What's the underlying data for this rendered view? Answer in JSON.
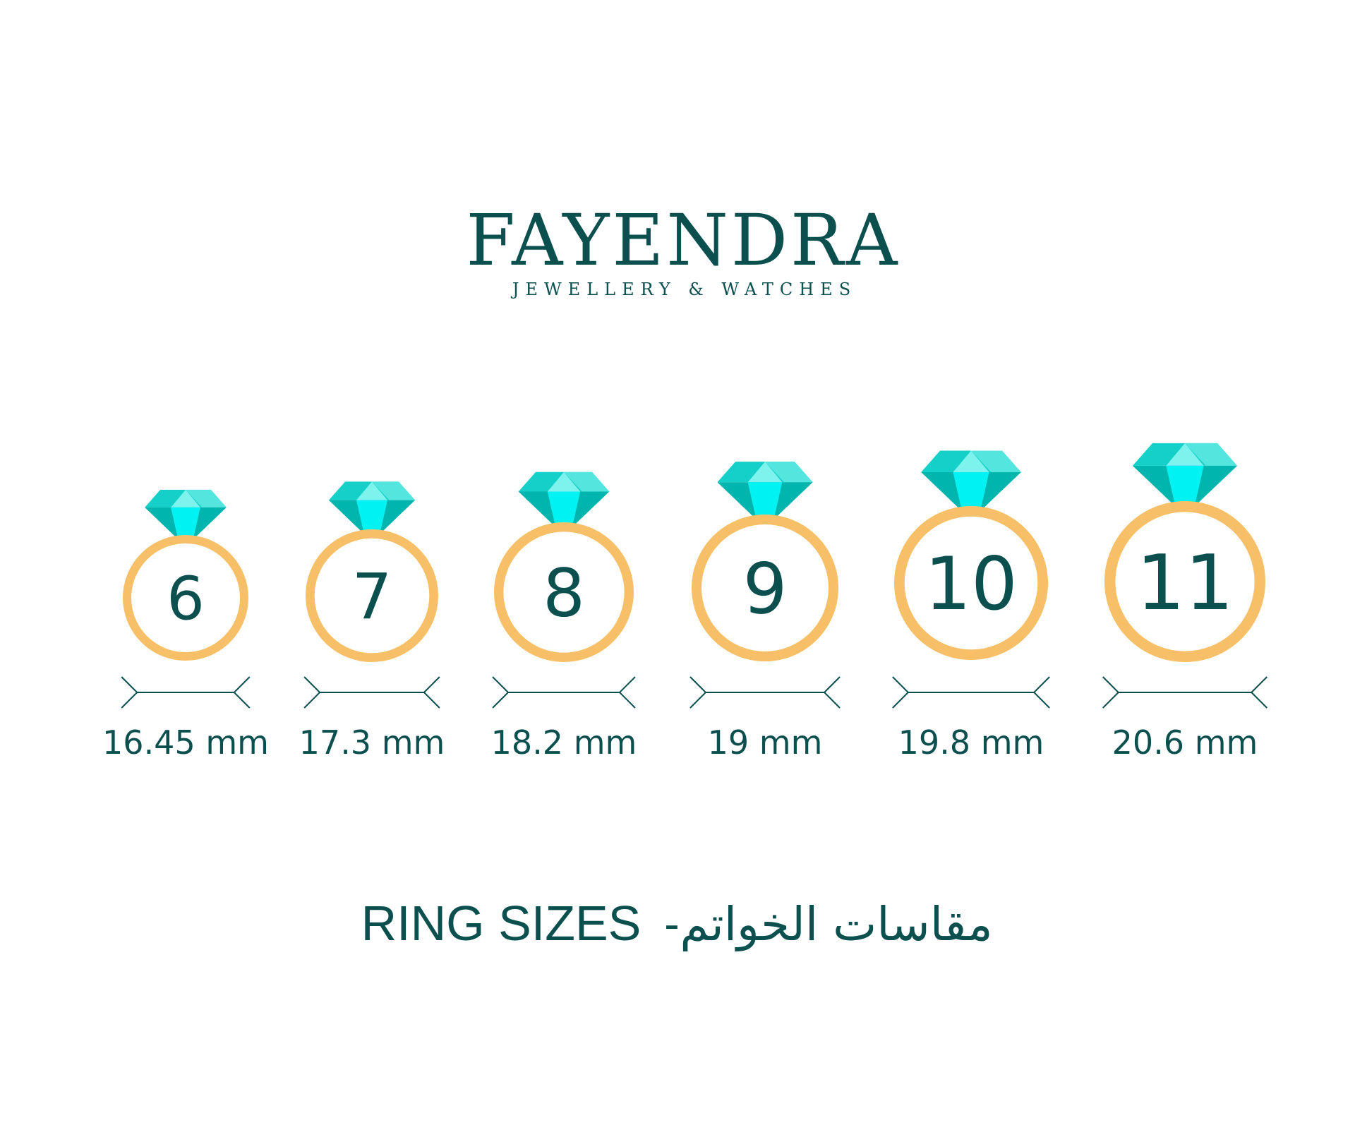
{
  "brand": {
    "name": "FAYENDRA",
    "tagline": "JEWELLERY & WATCHES"
  },
  "colors": {
    "text": "#0b4f4f",
    "ring": "#f7c068",
    "gem_dark": "#00b5ae",
    "gem_mid": "#14d0c8",
    "gem_light": "#7ef3ee",
    "gem_bright": "#00f2f2"
  },
  "rings": [
    {
      "size": "6",
      "diameter": "16.45 mm"
    },
    {
      "size": "7",
      "diameter": "17.3 mm"
    },
    {
      "size": "8",
      "diameter": "18.2 mm"
    },
    {
      "size": "9",
      "diameter": "19 mm"
    },
    {
      "size": "10",
      "diameter": "19.8 mm"
    },
    {
      "size": "11",
      "diameter": "20.6 mm"
    }
  ],
  "footer": {
    "title_en": "RING SIZES",
    "separator": "-",
    "title_ar": "مقاسات الخواتم"
  }
}
